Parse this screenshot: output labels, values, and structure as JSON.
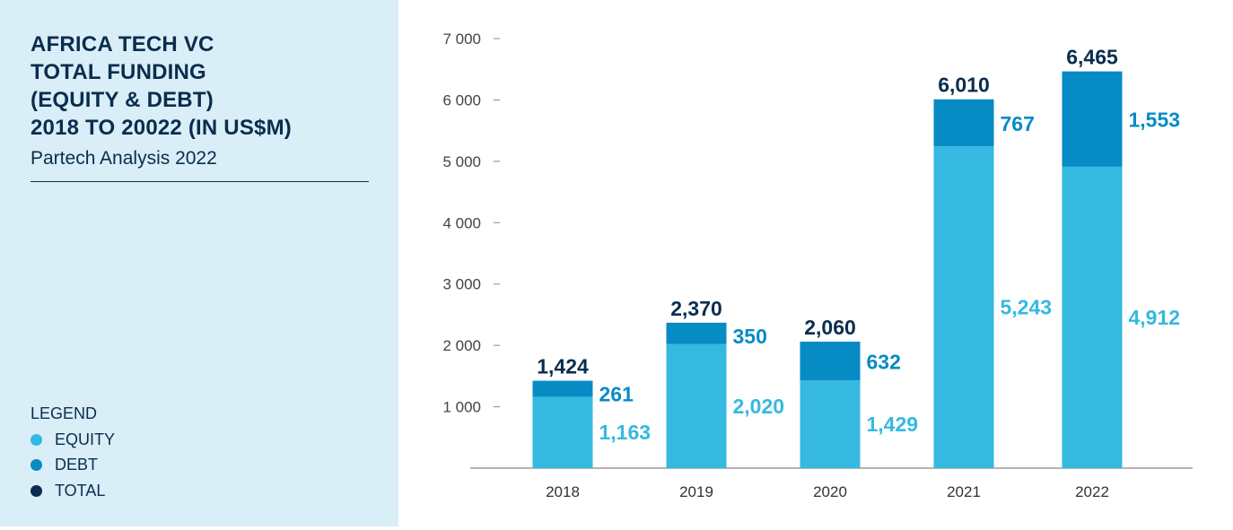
{
  "sidebar": {
    "title_lines": [
      "AFRICA TECH VC",
      "TOTAL FUNDING",
      "(EQUITY & DEBT)",
      "2018 TO 20022 (IN US$M)"
    ],
    "subtitle": "Partech Analysis 2022",
    "legend_title": "LEGEND",
    "legend": [
      {
        "label": "EQUITY",
        "color": "#35b9e0"
      },
      {
        "label": "DEBT",
        "color": "#078bc4"
      },
      {
        "label": "TOTAL",
        "color": "#0a2d4e"
      }
    ]
  },
  "chart_data": {
    "type": "bar",
    "stacked": true,
    "categories": [
      "2018",
      "2019",
      "2020",
      "2021",
      "2022"
    ],
    "series": [
      {
        "name": "EQUITY",
        "values": [
          1163,
          2020,
          1429,
          5243,
          4912
        ],
        "labels": [
          "1,163",
          "2,020",
          "1,429",
          "5,243",
          "4,912"
        ],
        "color": "#35b9e0"
      },
      {
        "name": "DEBT",
        "values": [
          261,
          350,
          632,
          767,
          1553
        ],
        "labels": [
          "261",
          "350",
          "632",
          "767",
          "1,553"
        ],
        "color": "#078bc4"
      }
    ],
    "totals": [
      1424,
      2370,
      2060,
      6010,
      6465
    ],
    "total_labels": [
      "1,424",
      "2,370",
      "2,060",
      "6,010",
      "6,465"
    ],
    "total_color": "#0a2d4e",
    "y_ticks": [
      1000,
      2000,
      3000,
      4000,
      5000,
      6000,
      7000
    ],
    "y_tick_labels": [
      "1 000",
      "2 000",
      "3 000",
      "4 000",
      "5 000",
      "6 000",
      "7 000"
    ],
    "ylim": [
      0,
      7000
    ],
    "grid": false,
    "legend_position": "left-bottom"
  }
}
